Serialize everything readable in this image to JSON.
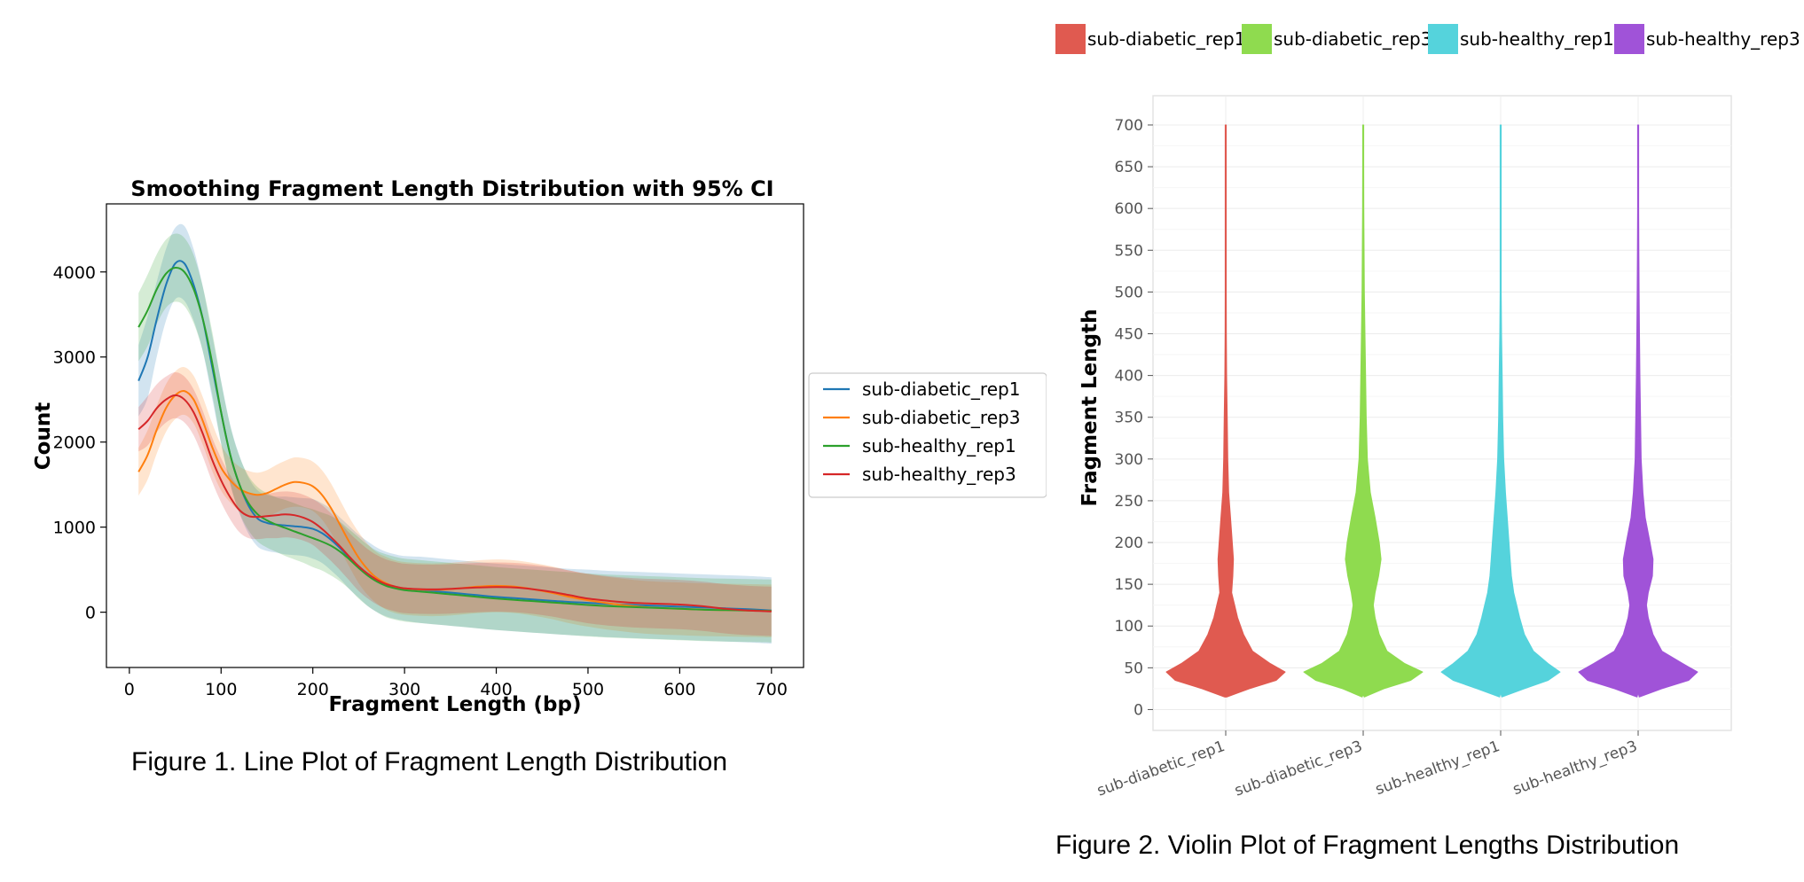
{
  "figure1": {
    "caption": "Figure 1. Line Plot of Fragment Length Distribution"
  },
  "figure2": {
    "caption": "Figure 2. Violin Plot of Fragment Lengths Distribution"
  },
  "colors": {
    "line_diabetic_rep1": "#1f77b4",
    "line_diabetic_rep3": "#ff7f0e",
    "line_healthy_rep1": "#2ca02c",
    "line_healthy_rep3": "#d62728",
    "violin_diabetic_rep1": "#e05a50",
    "violin_diabetic_rep3": "#8fdb4f",
    "violin_healthy_rep1": "#55d3dc",
    "violin_healthy_rep3": "#a053d8"
  },
  "chart_data": [
    {
      "type": "line",
      "title": "Smoothing Fragment Length Distribution with 95% CI",
      "xlabel": "Fragment Length (bp)",
      "ylabel": "Count",
      "xlim": [
        -25,
        735
      ],
      "ylim": [
        -650,
        4800
      ],
      "xticks": [
        0,
        100,
        200,
        300,
        400,
        500,
        600,
        700
      ],
      "yticks": [
        0,
        1000,
        2000,
        3000,
        4000
      ],
      "legend_position": "right-outside",
      "grid": false,
      "x": [
        10,
        20,
        30,
        40,
        50,
        60,
        70,
        80,
        90,
        100,
        110,
        120,
        130,
        140,
        150,
        160,
        170,
        180,
        190,
        200,
        210,
        220,
        230,
        240,
        250,
        260,
        270,
        280,
        290,
        300,
        320,
        340,
        360,
        380,
        400,
        420,
        440,
        460,
        480,
        500,
        525,
        550,
        575,
        600,
        625,
        650,
        675,
        700
      ],
      "series": [
        {
          "name": "sub-diabetic_rep1",
          "values": [
            2720,
            3000,
            3450,
            3850,
            4100,
            4100,
            3850,
            3450,
            2900,
            2350,
            1850,
            1500,
            1250,
            1100,
            1050,
            1030,
            1020,
            1010,
            1000,
            980,
            930,
            850,
            750,
            640,
            540,
            450,
            380,
            330,
            300,
            280,
            260,
            240,
            220,
            200,
            180,
            165,
            150,
            135,
            120,
            110,
            95,
            85,
            75,
            65,
            55,
            45,
            35,
            20
          ],
          "ci_halfwidth": [
            420,
            480,
            440,
            420,
            420,
            440,
            420,
            380,
            370,
            370,
            350,
            340,
            330,
            330,
            330,
            330,
            340,
            340,
            340,
            350,
            350,
            360,
            360,
            370,
            370,
            380,
            380,
            380,
            380,
            380,
            390,
            390,
            390,
            390,
            390,
            390,
            390,
            390,
            390,
            390,
            390,
            390,
            390,
            390,
            390,
            390,
            390,
            390
          ]
        },
        {
          "name": "sub-diabetic_rep3",
          "values": [
            1650,
            1850,
            2150,
            2400,
            2550,
            2600,
            2500,
            2250,
            1950,
            1700,
            1550,
            1450,
            1400,
            1380,
            1400,
            1450,
            1500,
            1530,
            1520,
            1480,
            1380,
            1220,
            1020,
            820,
            640,
            500,
            400,
            340,
            300,
            280,
            265,
            265,
            280,
            300,
            310,
            300,
            270,
            230,
            180,
            140,
            100,
            70,
            50,
            40,
            30,
            25,
            20,
            15
          ],
          "ci_halfwidth": [
            280,
            290,
            280,
            280,
            280,
            280,
            280,
            280,
            280,
            270,
            260,
            260,
            260,
            260,
            270,
            280,
            280,
            290,
            290,
            290,
            290,
            290,
            290,
            290,
            300,
            300,
            300,
            310,
            310,
            310,
            310,
            310,
            310,
            310,
            310,
            310,
            310,
            310,
            310,
            310,
            310,
            310,
            310,
            310,
            310,
            310,
            310,
            310
          ]
        },
        {
          "name": "sub-healthy_rep1",
          "values": [
            3350,
            3550,
            3800,
            3980,
            4050,
            4000,
            3800,
            3450,
            2950,
            2350,
            1850,
            1500,
            1280,
            1150,
            1080,
            1030,
            990,
            950,
            910,
            870,
            830,
            780,
            710,
            620,
            520,
            430,
            360,
            310,
            280,
            260,
            240,
            220,
            200,
            180,
            160,
            145,
            130,
            115,
            100,
            85,
            70,
            60,
            50,
            40,
            30,
            25,
            20,
            15
          ],
          "ci_halfwidth": [
            400,
            420,
            410,
            400,
            400,
            400,
            400,
            380,
            370,
            360,
            340,
            330,
            320,
            320,
            320,
            320,
            330,
            330,
            330,
            340,
            340,
            350,
            350,
            350,
            360,
            360,
            360,
            370,
            370,
            370,
            370,
            370,
            370,
            370,
            370,
            370,
            370,
            370,
            370,
            370,
            370,
            370,
            370,
            370,
            370,
            370,
            370,
            370
          ]
        },
        {
          "name": "sub-healthy_rep3",
          "values": [
            2150,
            2250,
            2400,
            2500,
            2550,
            2500,
            2350,
            2100,
            1800,
            1550,
            1350,
            1200,
            1130,
            1120,
            1130,
            1140,
            1150,
            1140,
            1110,
            1060,
            980,
            880,
            770,
            650,
            540,
            450,
            380,
            330,
            300,
            280,
            270,
            270,
            280,
            290,
            295,
            290,
            270,
            240,
            200,
            160,
            130,
            110,
            100,
            90,
            70,
            40,
            20,
            10
          ],
          "ci_halfwidth": [
            260,
            290,
            280,
            270,
            270,
            270,
            270,
            270,
            260,
            260,
            260,
            260,
            260,
            260,
            260,
            270,
            270,
            270,
            270,
            270,
            280,
            280,
            280,
            280,
            290,
            290,
            290,
            290,
            290,
            290,
            290,
            290,
            290,
            290,
            290,
            290,
            290,
            290,
            290,
            290,
            290,
            290,
            290,
            290,
            290,
            290,
            290,
            290
          ]
        }
      ]
    },
    {
      "type": "violin",
      "xlabel": "",
      "ylabel": "Fragment Length",
      "ylim": [
        -25,
        735
      ],
      "yticks": [
        0,
        50,
        100,
        150,
        200,
        250,
        300,
        350,
        400,
        450,
        500,
        550,
        600,
        650,
        700
      ],
      "legend_position": "top",
      "grid": true,
      "categories": [
        "sub-diabetic_rep1",
        "sub-diabetic_rep3",
        "sub-healthy_rep1",
        "sub-healthy_rep3"
      ],
      "range_min": [
        15,
        18,
        20,
        20
      ],
      "range_max": [
        700,
        700,
        700,
        700
      ],
      "density_y": [
        15,
        25,
        35,
        45,
        55,
        70,
        90,
        110,
        125,
        140,
        160,
        180,
        200,
        230,
        260,
        300,
        350,
        400,
        450,
        500,
        550,
        600,
        650,
        700
      ],
      "density": [
        [
          0.02,
          0.4,
          0.85,
          1.0,
          0.75,
          0.45,
          0.3,
          0.2,
          0.15,
          0.1,
          0.12,
          0.13,
          0.11,
          0.08,
          0.05,
          0.035,
          0.025,
          0.015,
          0.01,
          0.006,
          0.004,
          0.002,
          0.001,
          0.0005
        ],
        [
          0.02,
          0.35,
          0.8,
          1.0,
          0.7,
          0.4,
          0.27,
          0.2,
          0.17,
          0.2,
          0.26,
          0.3,
          0.27,
          0.2,
          0.12,
          0.07,
          0.05,
          0.04,
          0.03,
          0.02,
          0.015,
          0.01,
          0.006,
          0.002
        ],
        [
          0.02,
          0.4,
          0.8,
          1.0,
          0.8,
          0.55,
          0.4,
          0.32,
          0.27,
          0.22,
          0.18,
          0.16,
          0.14,
          0.11,
          0.08,
          0.05,
          0.035,
          0.025,
          0.015,
          0.008,
          0.004,
          0.002,
          0.001,
          0.0005
        ],
        [
          0.02,
          0.4,
          0.85,
          1.0,
          0.75,
          0.4,
          0.25,
          0.17,
          0.14,
          0.17,
          0.24,
          0.25,
          0.2,
          0.12,
          0.08,
          0.05,
          0.04,
          0.03,
          0.022,
          0.016,
          0.012,
          0.008,
          0.005,
          0.002
        ]
      ]
    }
  ]
}
